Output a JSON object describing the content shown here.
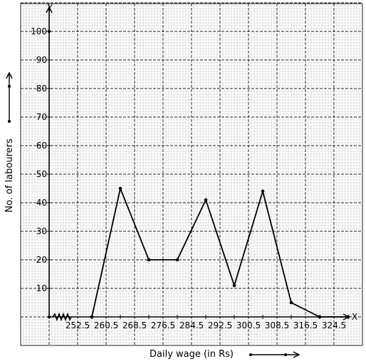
{
  "chart_data": {
    "type": "line",
    "title": "",
    "xlabel": "Daily wage (in Rs)",
    "ylabel": "No. of labourers",
    "x_axis_letter": "X",
    "y_axis_letter": "Y",
    "x_tick_labels": [
      "252.5",
      "260.5",
      "268.5",
      "276.5",
      "284.5",
      "292.5",
      "300.5",
      "308.5",
      "316.5",
      "324.5"
    ],
    "y_tick_labels": [
      "10",
      "20",
      "30",
      "40",
      "50",
      "60",
      "70",
      "80",
      "90",
      "100"
    ],
    "x_ticks": [
      252.5,
      260.5,
      268.5,
      276.5,
      284.5,
      292.5,
      300.5,
      308.5,
      316.5,
      324.5
    ],
    "y_ticks": [
      10,
      20,
      30,
      40,
      50,
      60,
      70,
      80,
      90,
      100
    ],
    "xlim": [
      240.5,
      328.5
    ],
    "ylim": [
      0,
      105
    ],
    "grid": true,
    "axis_break_on_x": true,
    "series": [
      {
        "x": [
          252.5,
          260.5,
          268.5,
          276.5,
          284.5,
          292.5,
          300.5,
          308.5,
          316.5,
          324.5
        ],
        "y": [
          0,
          45,
          20,
          20,
          41,
          11,
          44,
          5,
          0,
          0
        ]
      }
    ]
  }
}
